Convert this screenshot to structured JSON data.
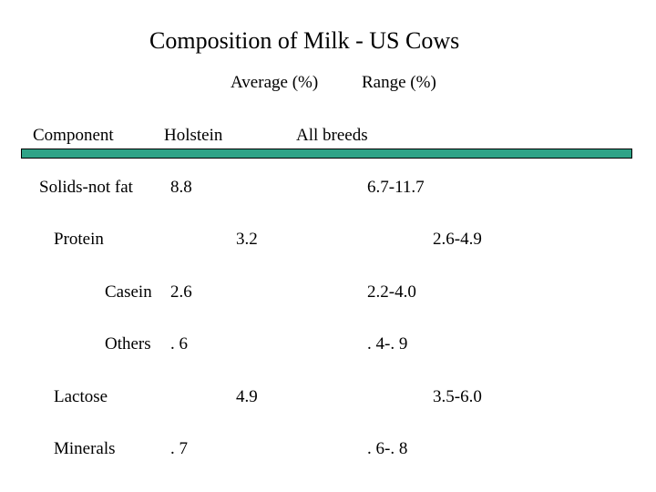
{
  "title": "Composition of Milk - US Cows",
  "subheader": {
    "average": "Average (%)",
    "range": "Range (%)"
  },
  "columns": {
    "component": "Component",
    "holstein": "Holstein",
    "all_breeds": "All breeds"
  },
  "colors": {
    "bar": "#2fa387"
  },
  "rows": [
    {
      "component": "Solids-not fat",
      "average": "8.8",
      "range": "6.7-11.7"
    },
    {
      "component": "Protein",
      "average": "3.2",
      "range": "2.6-4.9"
    },
    {
      "component": "Casein",
      "average": "2.6",
      "range": "2.2-4.0"
    },
    {
      "component": "Others",
      "average": ". 6",
      "range": ". 4-. 9"
    },
    {
      "component": "Lactose",
      "average": "4.9",
      "range": "3.5-6.0"
    },
    {
      "component": "Minerals",
      "average": ". 7",
      "range": ". 6-. 8"
    }
  ]
}
